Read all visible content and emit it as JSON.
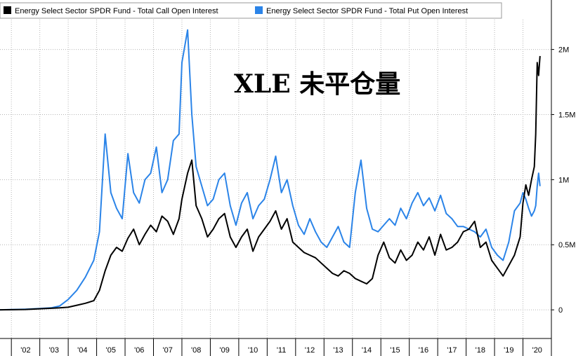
{
  "chart_data": {
    "type": "line",
    "title": "XLE 未平仓量",
    "xlabel": "",
    "ylabel": "",
    "x_tick_labels": [
      "'02",
      "'03",
      "'04",
      "'05",
      "'06",
      "'07",
      "'08",
      "'09",
      "'10",
      "'11",
      "'12",
      "'13",
      "'14",
      "'15",
      "'16",
      "'17",
      "'18",
      "'19",
      "'20"
    ],
    "y_tick_labels": [
      "0",
      "0.5M",
      "1M",
      "1.5M",
      "2M"
    ],
    "y_ticks": [
      0,
      500000,
      1000000,
      1500000,
      2000000
    ],
    "xlim": [
      2001.6,
      2021.0
    ],
    "ylim": [
      -220000,
      2380000
    ],
    "grid": true,
    "legend_position": "top-left",
    "series": [
      {
        "name": "Energy Select Sector SPDR Fund - Total Call Open Interest",
        "color": "#000000",
        "x": [
          2001.6,
          2002.5,
          2003.0,
          2003.4,
          2003.7,
          2004.0,
          2004.3,
          2004.6,
          2004.9,
          2005.1,
          2005.3,
          2005.5,
          2005.7,
          2005.9,
          2006.1,
          2006.3,
          2006.5,
          2006.7,
          2006.9,
          2007.1,
          2007.3,
          2007.5,
          2007.7,
          2007.9,
          2008.0,
          2008.2,
          2008.35,
          2008.5,
          2008.7,
          2008.9,
          2009.1,
          2009.3,
          2009.5,
          2009.7,
          2009.9,
          2010.1,
          2010.3,
          2010.5,
          2010.7,
          2010.9,
          2011.1,
          2011.3,
          2011.5,
          2011.7,
          2011.9,
          2012.1,
          2012.3,
          2012.5,
          2012.7,
          2012.9,
          2013.1,
          2013.3,
          2013.5,
          2013.7,
          2013.9,
          2014.1,
          2014.3,
          2014.5,
          2014.7,
          2014.9,
          2015.1,
          2015.3,
          2015.5,
          2015.7,
          2015.9,
          2016.1,
          2016.3,
          2016.5,
          2016.7,
          2016.9,
          2017.1,
          2017.3,
          2017.5,
          2017.7,
          2017.9,
          2018.1,
          2018.3,
          2018.5,
          2018.7,
          2018.9,
          2019.1,
          2019.3,
          2019.5,
          2019.7,
          2019.9,
          2020.0,
          2020.1,
          2020.2,
          2020.3,
          2020.4,
          2020.45,
          2020.5,
          2020.55,
          2020.6
        ],
        "values": [
          0,
          3000,
          8000,
          12000,
          15000,
          20000,
          35000,
          50000,
          70000,
          150000,
          300000,
          420000,
          480000,
          450000,
          550000,
          620000,
          500000,
          580000,
          650000,
          600000,
          720000,
          680000,
          580000,
          700000,
          850000,
          1050000,
          1150000,
          800000,
          700000,
          560000,
          620000,
          700000,
          740000,
          560000,
          480000,
          560000,
          620000,
          450000,
          560000,
          620000,
          680000,
          760000,
          620000,
          700000,
          520000,
          480000,
          440000,
          420000,
          400000,
          360000,
          320000,
          280000,
          260000,
          300000,
          280000,
          240000,
          220000,
          200000,
          240000,
          420000,
          520000,
          400000,
          360000,
          460000,
          380000,
          420000,
          520000,
          460000,
          560000,
          420000,
          580000,
          460000,
          480000,
          520000,
          600000,
          620000,
          680000,
          480000,
          520000,
          380000,
          320000,
          260000,
          340000,
          420000,
          560000,
          820000,
          960000,
          880000,
          1000000,
          1100000,
          1350000,
          1900000,
          1800000,
          1950000
        ]
      },
      {
        "name": "Energy Select Sector SPDR Fund - Total Put Open Interest",
        "color": "#2b84e8",
        "x": [
          2001.6,
          2002.5,
          2003.0,
          2003.4,
          2003.7,
          2004.0,
          2004.3,
          2004.6,
          2004.9,
          2005.1,
          2005.3,
          2005.5,
          2005.7,
          2005.9,
          2006.1,
          2006.3,
          2006.5,
          2006.7,
          2006.9,
          2007.1,
          2007.3,
          2007.5,
          2007.7,
          2007.9,
          2008.0,
          2008.2,
          2008.35,
          2008.5,
          2008.7,
          2008.9,
          2009.1,
          2009.3,
          2009.5,
          2009.7,
          2009.9,
          2010.1,
          2010.3,
          2010.5,
          2010.7,
          2010.9,
          2011.1,
          2011.3,
          2011.5,
          2011.7,
          2011.9,
          2012.1,
          2012.3,
          2012.5,
          2012.7,
          2012.9,
          2013.1,
          2013.3,
          2013.5,
          2013.7,
          2013.9,
          2014.1,
          2014.3,
          2014.5,
          2014.7,
          2014.9,
          2015.1,
          2015.3,
          2015.5,
          2015.7,
          2015.9,
          2016.1,
          2016.3,
          2016.5,
          2016.7,
          2016.9,
          2017.1,
          2017.3,
          2017.5,
          2017.7,
          2017.9,
          2018.1,
          2018.3,
          2018.5,
          2018.7,
          2018.9,
          2019.1,
          2019.3,
          2019.5,
          2019.7,
          2019.9,
          2020.0,
          2020.1,
          2020.2,
          2020.3,
          2020.4,
          2020.45,
          2020.5,
          2020.55,
          2020.6
        ],
        "values": [
          0,
          5000,
          10000,
          15000,
          30000,
          80000,
          150000,
          250000,
          380000,
          600000,
          1350000,
          900000,
          780000,
          700000,
          1200000,
          900000,
          820000,
          1000000,
          1050000,
          1250000,
          900000,
          1000000,
          1300000,
          1350000,
          1900000,
          2150000,
          1500000,
          1100000,
          950000,
          800000,
          850000,
          1000000,
          1050000,
          800000,
          650000,
          820000,
          900000,
          700000,
          800000,
          850000,
          1000000,
          1180000,
          900000,
          1000000,
          800000,
          650000,
          580000,
          700000,
          600000,
          520000,
          480000,
          560000,
          640000,
          520000,
          480000,
          900000,
          1150000,
          780000,
          620000,
          600000,
          650000,
          700000,
          650000,
          780000,
          700000,
          820000,
          900000,
          800000,
          860000,
          760000,
          880000,
          740000,
          700000,
          640000,
          640000,
          620000,
          600000,
          560000,
          620000,
          480000,
          420000,
          380000,
          520000,
          760000,
          820000,
          900000,
          850000,
          780000,
          720000,
          760000,
          800000,
          950000,
          1050000,
          950000
        ]
      }
    ]
  }
}
